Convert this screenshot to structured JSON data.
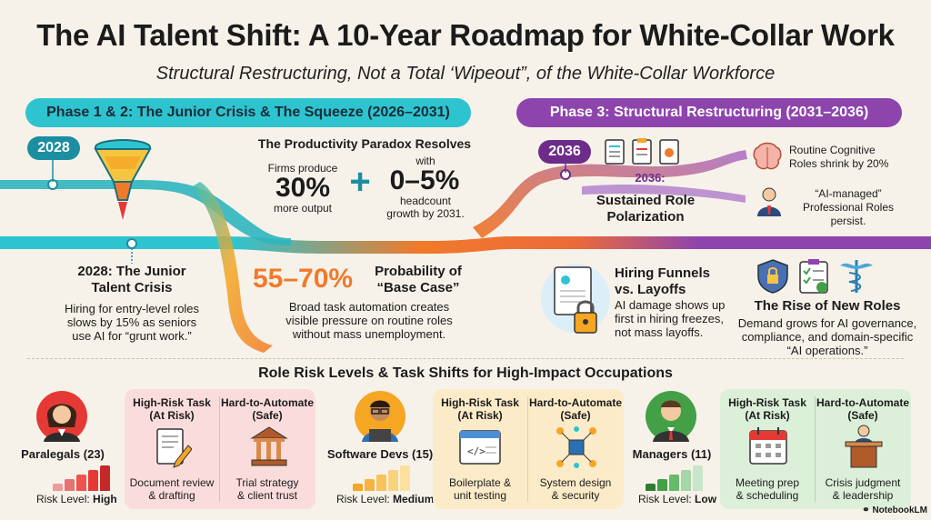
{
  "title": "The AI Talent Shift: A 10-Year Roadmap for White-Collar Work",
  "subtitle": "Structural Restructuring, Not a Total ‘Wipeout”, of the White-Collar Workforce",
  "phase12": {
    "label": "Phase 1 & 2: The Junior Crisis & The Squeeze (2026–2031)",
    "year": "2028",
    "junior": {
      "title1": "2028: The Junior",
      "title2": "Talent Crisis",
      "body1": "Hiring for entry-level roles",
      "body2": "slows by 15% as seniors",
      "body3": "use AI for “grunt work.”"
    },
    "paradox": {
      "title": "The Productivity Paradox Resolves",
      "firms": "Firms produce",
      "pct": "30%",
      "output": "more output",
      "plus": "+",
      "with": "with",
      "range": "0–5%",
      "headcount": "headcount",
      "growth": "growth by 2031."
    },
    "base": {
      "pct": "55–70%",
      "title1": "Probability of",
      "title2": "“Base Case”",
      "body1": "Broad task automation creates",
      "body2": "visible pressure on routine roles",
      "body3": "without mass unemployment."
    }
  },
  "phase3": {
    "label": "Phase 3: Structural Restructuring (2031–2036)",
    "year": "2036",
    "polar": {
      "year_label": "2036:",
      "title1": "Sustained Role",
      "title2": "Polarization"
    },
    "routine": {
      "line1": "Routine Cognitive",
      "line2": "Roles shrink by 20%"
    },
    "managed": {
      "line1": "“AI-managed”",
      "line2": "Professional Roles",
      "line3": "persist."
    },
    "funnels": {
      "title1": "Hiring Funnels",
      "title2": "vs. Layoffs",
      "body1": "AI damage shows up",
      "body2": "first in hiring freezes,",
      "body3": "not mass layoffs."
    },
    "newroles": {
      "title": "The Rise of New Roles",
      "body1": "Demand grows for AI governance,",
      "body2": "compliance, and domain-specific",
      "body3": "“AI operations.”"
    }
  },
  "section_title": "Role Risk Levels & Task Shifts for High-Impact Occupations",
  "occupations": [
    {
      "name": "Paralegals (23)",
      "risk_prefix": "Risk Level: ",
      "risk": "High",
      "risk_level": 3,
      "color": "#e53935",
      "high_risk_hdr1": "High-Risk Task",
      "high_risk_hdr2": "(At Risk)",
      "safe_hdr1": "Hard-to-Automate",
      "safe_hdr2": "(Safe)",
      "task1": "Document review",
      "task2": "& drafting",
      "safe1": "Trial strategy",
      "safe2": "& client trust",
      "task_icon": "document-pen-icon",
      "safe_icon": "courthouse-icon"
    },
    {
      "name": "Software Devs (15)",
      "risk_prefix": "Risk Level: ",
      "risk": "Medium",
      "risk_level": 2,
      "color": "#f5a623",
      "high_risk_hdr1": "High-Risk Task",
      "high_risk_hdr2": "(At Risk)",
      "safe_hdr1": "Hard-to-Automate",
      "safe_hdr2": "(Safe)",
      "task1": "Boilerplate &",
      "task2": "unit testing",
      "safe1": "System design",
      "safe2": "& security",
      "task_icon": "code-window-icon",
      "safe_icon": "network-cube-icon"
    },
    {
      "name": "Managers (11)",
      "risk_prefix": "Risk Level: ",
      "risk": "Low",
      "risk_level": 1,
      "color": "#43a047",
      "high_risk_hdr1": "High-Risk Task",
      "high_risk_hdr2": "(At Risk)",
      "safe_hdr1": "Hard-to-Automate",
      "safe_hdr2": "(Safe)",
      "task1": "Meeting prep",
      "task2": "& scheduling",
      "safe1": "Crisis judgment",
      "safe2": "& leadership",
      "task_icon": "calendar-icon",
      "safe_icon": "podium-speaker-icon"
    }
  ],
  "brand": "NotebookLM",
  "colors": {
    "teal": "#2ec4cf",
    "purple": "#8e44ad",
    "orange": "#f5a623",
    "red": "#e53935",
    "green": "#43a047"
  }
}
